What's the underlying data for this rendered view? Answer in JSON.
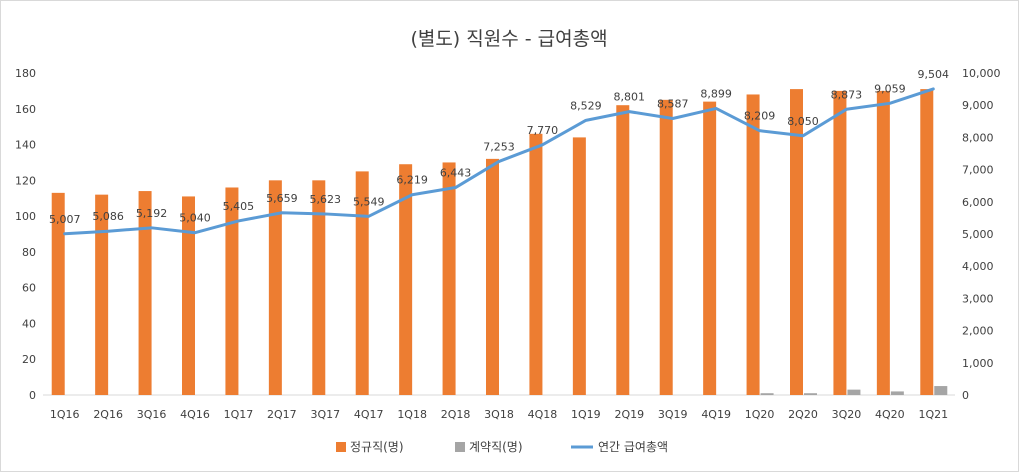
{
  "chart_data": {
    "type": "bar",
    "title": "(별도) 직원수 - 급여총액",
    "categories": [
      "1Q16",
      "2Q16",
      "3Q16",
      "4Q16",
      "1Q17",
      "2Q17",
      "3Q17",
      "4Q17",
      "1Q18",
      "2Q18",
      "3Q18",
      "4Q18",
      "1Q19",
      "2Q19",
      "3Q19",
      "4Q19",
      "1Q20",
      "2Q20",
      "3Q20",
      "4Q20",
      "1Q21"
    ],
    "series": [
      {
        "name": "정규직(명)",
        "type": "bar",
        "axis": "left",
        "color": "#ED7D31",
        "values": [
          113,
          112,
          114,
          111,
          116,
          120,
          120,
          125,
          129,
          130,
          132,
          146,
          144,
          162,
          165,
          164,
          168,
          171,
          170,
          170,
          171
        ]
      },
      {
        "name": "계약직(명)",
        "type": "bar",
        "axis": "left",
        "color": "#A5A5A5",
        "values": [
          0,
          0,
          0,
          0,
          0,
          0,
          0,
          0,
          0,
          0,
          0,
          0,
          0,
          0,
          0,
          0,
          1,
          1,
          3,
          2,
          5
        ]
      },
      {
        "name": "연간 급여총액",
        "type": "line",
        "axis": "right",
        "color": "#5B9BD5",
        "values": [
          5007,
          5086,
          5192,
          5040,
          5405,
          5659,
          5623,
          5549,
          6219,
          6443,
          7253,
          7770,
          8529,
          8801,
          8587,
          8899,
          8209,
          8050,
          8873,
          9059,
          9504
        ],
        "labels": [
          "5,007",
          "5,086",
          "5,192",
          "5,040",
          "5,405",
          "5,659",
          "5,623",
          "5,549",
          "6,219",
          "6,443",
          "7,253",
          "7,770",
          "8,529",
          "8,801",
          "8,587",
          "8,899",
          "8,209",
          "8,050",
          "8,873",
          "9,059",
          "9,504"
        ]
      }
    ],
    "ylim_left": [
      0,
      180
    ],
    "ylim_right": [
      0,
      10000
    ],
    "yticks_left": [
      "0",
      "20",
      "40",
      "60",
      "80",
      "100",
      "120",
      "140",
      "160",
      "180"
    ],
    "yticks_right": [
      "0",
      "1,000",
      "2,000",
      "3,000",
      "4,000",
      "5,000",
      "6,000",
      "7,000",
      "8,000",
      "9,000",
      "10,000"
    ],
    "legend_position": "bottom",
    "grid": false
  }
}
